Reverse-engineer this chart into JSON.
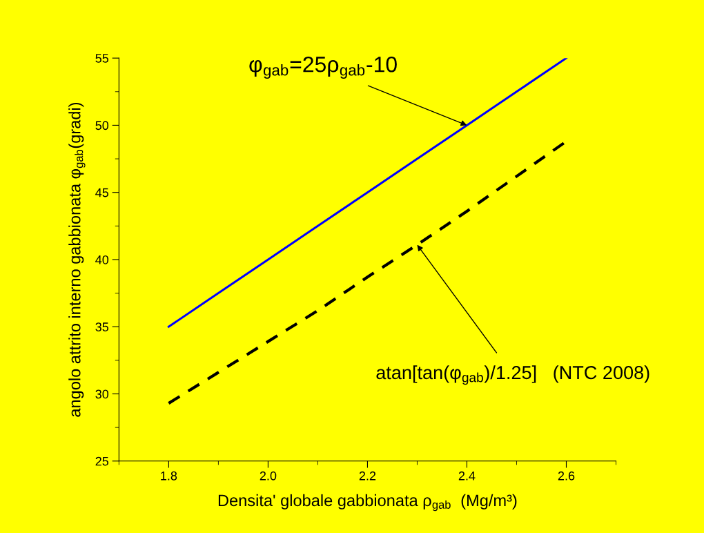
{
  "chart_data": {
    "type": "line",
    "xlabel": "Densita' globale gabbionata ρ$_{gab}$  (Mg/m³)",
    "ylabel": "angolo attrito interno gabbionata φ$_{gab}$(gradi)",
    "x": [
      1.8,
      1.9,
      2.0,
      2.1,
      2.2,
      2.3,
      2.4,
      2.5,
      2.6
    ],
    "series": [
      {
        "color": "#0000ff",
        "line_style": "solid",
        "values": [
          35,
          37.5,
          40,
          42.5,
          45,
          47.5,
          50,
          52.5,
          55
        ]
      },
      {
        "color": "#000000",
        "line_style": "dashed",
        "values": [
          29.3,
          31.6,
          33.9,
          36.2,
          38.7,
          41.1,
          43.6,
          46.2,
          48.8
        ]
      }
    ],
    "annotations": [
      {
        "text": "φ$_{gab}$=25ρ$_{gab}$-10",
        "x": 2.4,
        "y": 50
      },
      {
        "text": "atan[tan(φ$_{gab}$)/1.25]   (NTC 2008)",
        "x": 2.3,
        "y": 41.1
      }
    ],
    "xlim": [
      1.7,
      2.7
    ],
    "xticks": [
      {
        "value": 1.8,
        "label": "1.8"
      },
      {
        "value": 2.0,
        "label": "2.0"
      },
      {
        "value": 2.2,
        "label": "2.2"
      },
      {
        "value": 2.4,
        "label": "2.4"
      },
      {
        "value": 2.6,
        "label": "2.6"
      }
    ],
    "ylim": [
      25,
      55
    ],
    "yticks": [
      25,
      30,
      35,
      40,
      45,
      50,
      55
    ],
    "grid": false,
    "marker": "none"
  }
}
